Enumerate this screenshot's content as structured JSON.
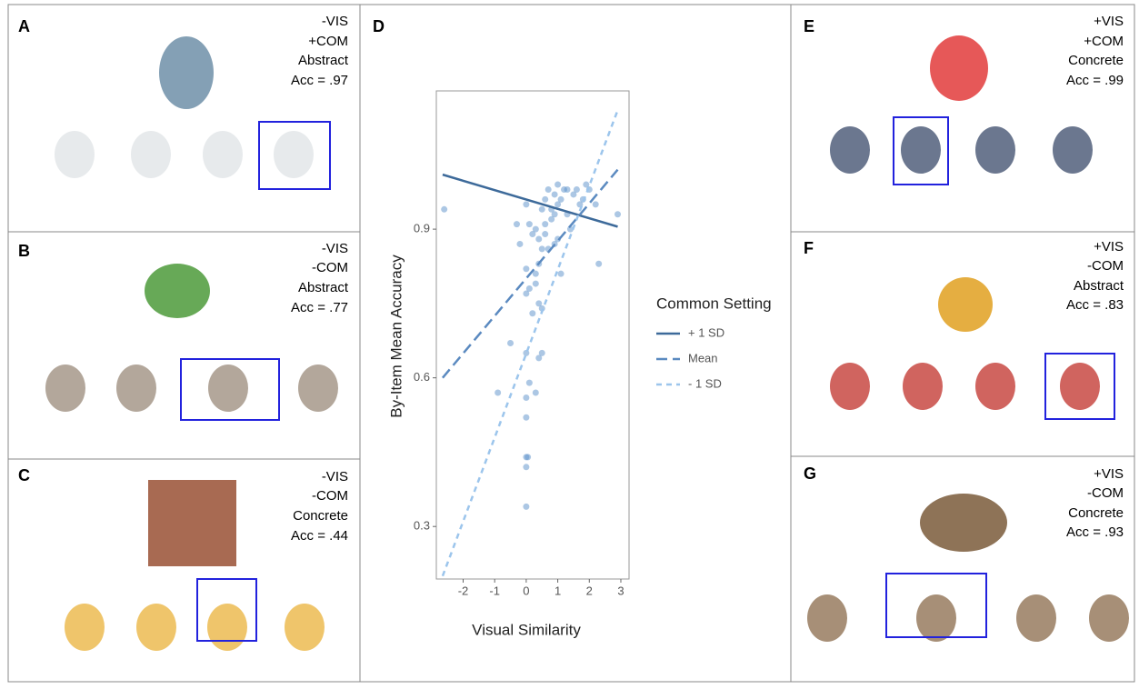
{
  "panels": [
    {
      "letter": "A",
      "lines": [
        "-VIS",
        "+COM",
        "Abstract",
        "Acc = .97"
      ]
    },
    {
      "letter": "B",
      "lines": [
        "-VIS",
        "-COM",
        "Abstract",
        "Acc = .77"
      ]
    },
    {
      "letter": "C",
      "lines": [
        "-VIS",
        "-COM",
        "Concrete",
        "Acc = .44"
      ]
    },
    {
      "letter": "E",
      "lines": [
        "+VIS",
        "+COM",
        "Concrete",
        "Acc = .99"
      ]
    },
    {
      "letter": "F",
      "lines": [
        "+VIS",
        "-COM",
        "Abstract",
        "Acc = .83"
      ]
    },
    {
      "letter": "G",
      "lines": [
        "+VIS",
        "-COM",
        "Concrete",
        "Acc = .93"
      ]
    }
  ],
  "chart_data": {
    "type": "scatter",
    "panel_letter": "D",
    "x_label": "Visual Similarity",
    "y_label": "By-Item Mean Accuracy",
    "xlim": [
      -2.85,
      3.26
    ],
    "ylim": [
      0.194,
      1.179
    ],
    "xticks": [
      -2,
      -1,
      0,
      1,
      2,
      3
    ],
    "yticks": [
      {
        "value": 0.3,
        "label": "0.3"
      },
      {
        "value": 0.6,
        "label": "0.6"
      },
      {
        "value": 0.9,
        "label": "0.9"
      }
    ],
    "grid": false,
    "points": {
      "color": "#5a8fca",
      "x": [
        -2.6,
        0.0,
        0.0,
        0.05,
        0.0,
        -0.9,
        0.0,
        0.0,
        0.3,
        0.1,
        -0.5,
        0.4,
        0.5,
        0.0,
        0.2,
        0.4,
        0.5,
        0.0,
        0.1,
        1.1,
        0.3,
        0.4,
        2.3,
        -0.2,
        0.5,
        0.7,
        0.9,
        0.2,
        0.4,
        0.6,
        1.0,
        -0.3,
        0.1,
        0.3,
        0.6,
        0.8,
        1.4,
        2.9,
        0.0,
        0.5,
        0.8,
        1.0,
        1.3,
        1.7,
        2.2,
        0.6,
        0.9,
        1.1,
        1.5,
        1.8,
        2.0,
        0.7,
        1.0,
        1.2,
        1.6,
        1.9,
        0.9,
        1.3,
        0.0,
        0.3
      ],
      "values": [
        0.94,
        0.34,
        0.42,
        0.44,
        0.44,
        0.57,
        0.52,
        0.56,
        0.57,
        0.59,
        0.67,
        0.64,
        0.65,
        0.65,
        0.73,
        0.75,
        0.74,
        0.77,
        0.78,
        0.81,
        0.81,
        0.83,
        0.83,
        0.87,
        0.86,
        0.86,
        0.87,
        0.89,
        0.88,
        0.89,
        0.88,
        0.91,
        0.91,
        0.9,
        0.91,
        0.92,
        0.9,
        0.93,
        0.95,
        0.94,
        0.94,
        0.95,
        0.93,
        0.95,
        0.95,
        0.96,
        0.97,
        0.96,
        0.97,
        0.96,
        0.98,
        0.98,
        0.99,
        0.98,
        0.98,
        0.99,
        0.93,
        0.98,
        0.82,
        0.79
      ]
    },
    "legend_title": "Common Setting",
    "series": [
      {
        "name": "+ 1 SD",
        "color": "#3d6a9a",
        "x": [
          -2.65,
          2.9
        ],
        "values": [
          1.01,
          0.905
        ]
      },
      {
        "name": "Mean",
        "color": "#5b8ac0",
        "x": [
          -2.65,
          2.9
        ],
        "values": [
          0.6,
          1.02
        ]
      },
      {
        "name": "- 1 SD",
        "color": "#9cc5ec",
        "x": [
          -2.65,
          2.9
        ],
        "values": [
          0.2,
          1.14
        ]
      }
    ]
  }
}
